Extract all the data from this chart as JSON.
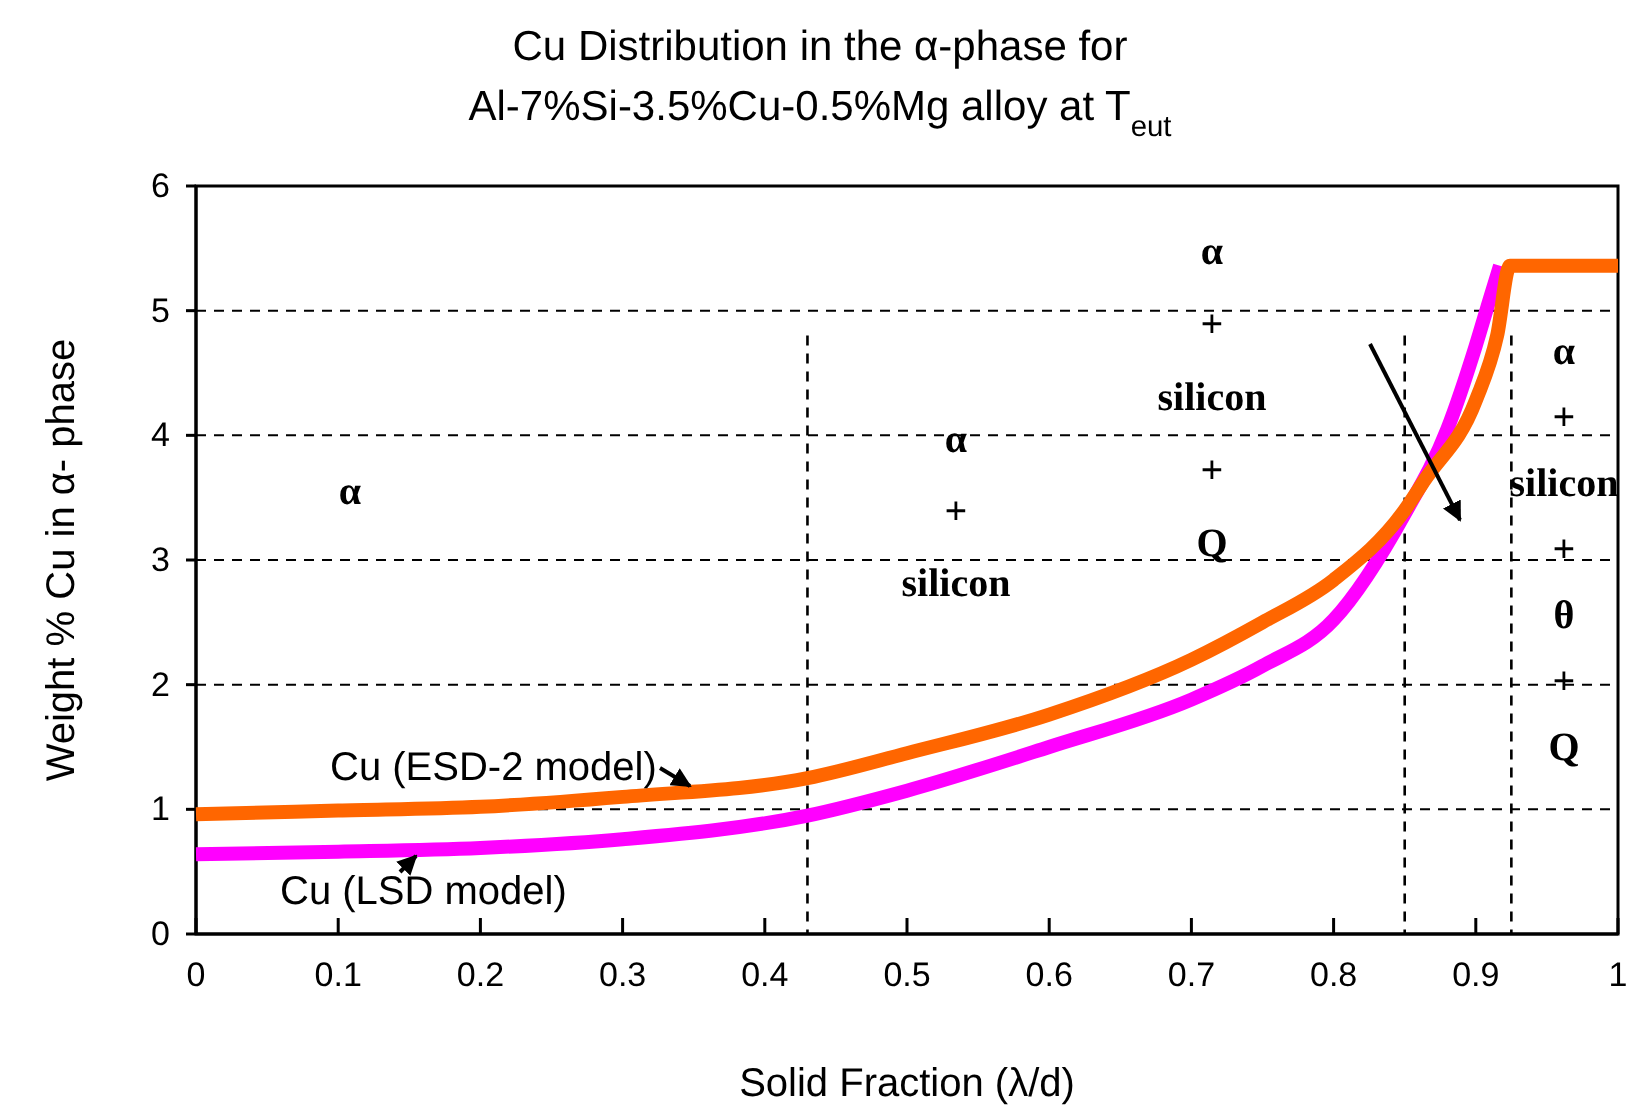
{
  "chart_data": {
    "type": "line",
    "title": "Cu Distribution in the α-phase for",
    "subtitle": "Al-7%Si-3.5%Cu-0.5%Mg alloy at T$_{eut}$",
    "xlabel": "Solid Fraction (λ/d)",
    "ylabel": "Weight % Cu in α- phase",
    "xlim": [
      0,
      1
    ],
    "ylim": [
      0,
      6
    ],
    "xticks": [
      0,
      0.1,
      0.2,
      0.3,
      0.4,
      0.5,
      0.6,
      0.7,
      0.8,
      0.9,
      1
    ],
    "yticks": [
      0,
      1,
      2,
      3,
      4,
      5,
      6
    ],
    "grid": "y",
    "legend": false,
    "line_style": "solid",
    "marker": "none",
    "series": [
      {
        "name": "Cu (LSD model)",
        "color": "#ff00ff",
        "x": [
          0,
          0.1,
          0.2,
          0.3,
          0.43,
          0.5,
          0.6,
          0.7,
          0.75,
          0.8,
          0.85,
          0.88,
          0.9,
          0.91,
          0.917
        ],
        "values": [
          0.64,
          0.66,
          0.69,
          0.76,
          0.95,
          1.15,
          1.5,
          1.88,
          2.15,
          2.52,
          3.37,
          4.05,
          4.72,
          5.1,
          5.36
        ]
      },
      {
        "name": "Cu (ESD-2 model)",
        "color": "#ff6600",
        "x": [
          0,
          0.1,
          0.2,
          0.3,
          0.43,
          0.5,
          0.6,
          0.7,
          0.75,
          0.8,
          0.85,
          0.864,
          0.9,
          0.915,
          0.924,
          1
        ],
        "values": [
          0.96,
          0.99,
          1.02,
          1.1,
          1.25,
          1.45,
          1.76,
          2.2,
          2.5,
          2.84,
          3.4,
          3.64,
          4.28,
          4.8,
          5.36,
          5.36
        ]
      }
    ],
    "ref_lines": [
      {
        "axis": "x",
        "value": 0.43,
        "line_style": "dashed",
        "color": "#000000"
      },
      {
        "axis": "x",
        "value": 0.85,
        "line_style": "dashed",
        "color": "#000000"
      },
      {
        "axis": "x",
        "value": 0.925,
        "line_style": "dashed",
        "color": "#000000"
      }
    ],
    "annotations": [
      "α",
      "α\n+\nsilicon",
      "α\n+\nsilicon\n+\nQ",
      "α\n+\nsilicon\n+\nθ\n+\nQ"
    ]
  }
}
